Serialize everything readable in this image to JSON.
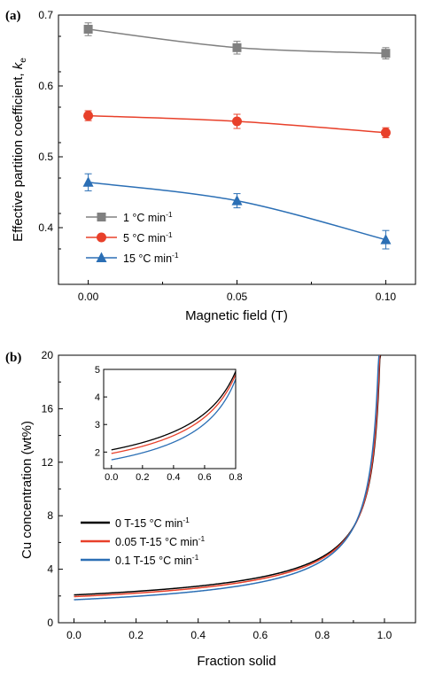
{
  "chart_data": [
    {
      "panel_label": "(a)",
      "type": "line",
      "xlabel": "Magnetic field (T)",
      "ylabel_main": "Effective partition coefficient, ",
      "ylabel_var": "k",
      "ylabel_sub": "e",
      "xlim": [
        -0.01,
        0.11
      ],
      "ylim": [
        0.32,
        0.7
      ],
      "xticks": [
        0.0,
        0.05,
        0.1
      ],
      "xtick_labels": [
        "0.00",
        "0.05",
        "0.10"
      ],
      "yticks": [
        0.4,
        0.5,
        0.6,
        0.7
      ],
      "ytick_labels": [
        "0.4",
        "0.5",
        "0.6",
        "0.7"
      ],
      "legend_position": "bottom-left",
      "series": [
        {
          "name": "1 °C min",
          "name_sup": "-1",
          "color": "#808080",
          "marker": "square",
          "x": [
            0.0,
            0.05,
            0.1
          ],
          "y": [
            0.68,
            0.654,
            0.646
          ],
          "err": [
            0.009,
            0.009,
            0.008
          ]
        },
        {
          "name": "5 °C min",
          "name_sup": "-1",
          "color": "#e8402a",
          "marker": "circle",
          "x": [
            0.0,
            0.05,
            0.1
          ],
          "y": [
            0.558,
            0.55,
            0.534
          ],
          "err": [
            0.007,
            0.01,
            0.007
          ]
        },
        {
          "name": "15 °C min",
          "name_sup": "-1",
          "color": "#2b6fb5",
          "marker": "triangle",
          "x": [
            0.0,
            0.05,
            0.1
          ],
          "y": [
            0.464,
            0.438,
            0.383
          ],
          "err": [
            0.012,
            0.01,
            0.013
          ]
        }
      ]
    },
    {
      "panel_label": "(b)",
      "type": "line",
      "xlabel": "Fraction solid",
      "ylabel": "Cu concentration (wt%)",
      "xlim": [
        -0.05,
        1.1
      ],
      "ylim": [
        0,
        20
      ],
      "xticks": [
        0.0,
        0.2,
        0.4,
        0.6,
        0.8,
        1.0
      ],
      "xtick_labels": [
        "0.0",
        "0.2",
        "0.4",
        "0.6",
        "0.8",
        "1.0"
      ],
      "yticks": [
        0,
        4,
        8,
        12,
        16,
        20
      ],
      "ytick_labels": [
        "0",
        "4",
        "8",
        "12",
        "16",
        "20"
      ],
      "legend_position": "center-left",
      "c0": 2.08,
      "series": [
        {
          "name": "0 T-15 °C min",
          "name_sup": "-1",
          "color": "#000000",
          "k": 0.464,
          "c0": 2.08
        },
        {
          "name": "0.05 T-15 °C min",
          "name_sup": "-1",
          "color": "#e8402a",
          "k": 0.438,
          "c0": 1.95
        },
        {
          "name": "0.1 T-15 °C min",
          "name_sup": "-1",
          "color": "#2b6fb5",
          "k": 0.383,
          "c0": 1.72
        }
      ],
      "inset": {
        "xlim": [
          -0.05,
          0.8
        ],
        "ylim": [
          1.4,
          5
        ],
        "xticks": [
          0.0,
          0.2,
          0.4,
          0.6,
          0.8
        ],
        "xtick_labels": [
          "0.0",
          "0.2",
          "0.4",
          "0.6",
          "0.8"
        ],
        "yticks": [
          2,
          3,
          4,
          5
        ],
        "ytick_labels": [
          "2",
          "3",
          "4",
          "5"
        ]
      }
    }
  ]
}
